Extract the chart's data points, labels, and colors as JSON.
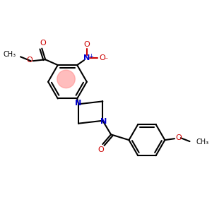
{
  "bg_color": "#ffffff",
  "bond_color": "#000000",
  "N_color": "#0000cc",
  "O_color": "#cc0000",
  "highlight_color": "#ff8888",
  "highlight_alpha": 0.55,
  "lw": 1.5,
  "figsize": [
    3.0,
    3.0
  ],
  "dpi": 100,
  "xlim": [
    0,
    300
  ],
  "ylim": [
    0,
    300
  ]
}
